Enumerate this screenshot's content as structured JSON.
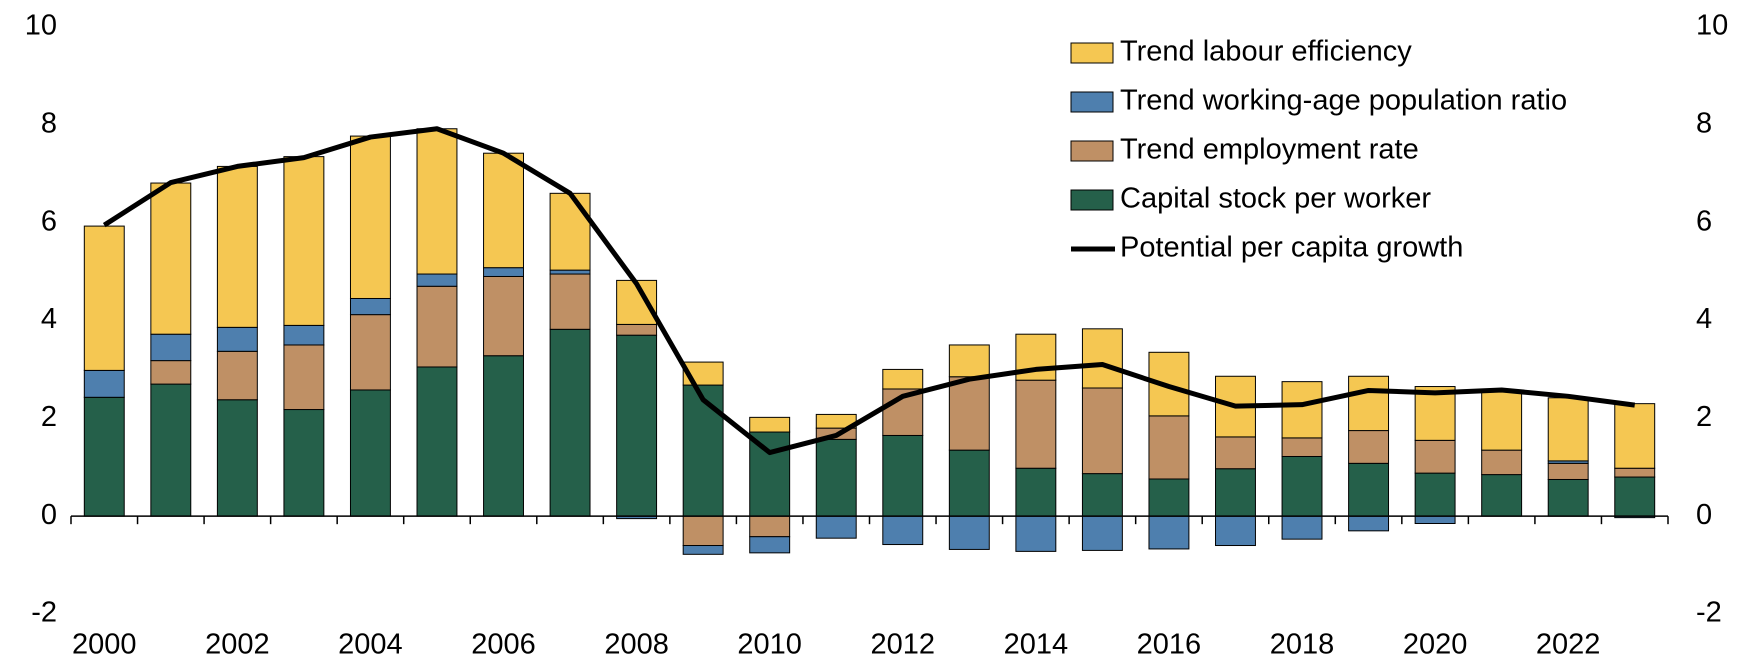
{
  "chart_data": {
    "type": "bar",
    "stacked": true,
    "categories": [
      "2000",
      null,
      "2002",
      null,
      "2004",
      null,
      "2006",
      null,
      "2008",
      null,
      "2010",
      null,
      "2012",
      null,
      "2014",
      null,
      "2016",
      null,
      "2018",
      null,
      "2020",
      null,
      "2022",
      null
    ],
    "series": [
      {
        "name": "Capital stock per worker",
        "color": "#25604a",
        "values": [
          2.43,
          2.7,
          2.38,
          2.18,
          2.58,
          3.05,
          3.28,
          3.82,
          3.7,
          2.68,
          1.72,
          1.57,
          1.65,
          1.35,
          0.98,
          0.87,
          0.76,
          0.97,
          1.22,
          1.08,
          0.88,
          0.85,
          0.75,
          0.8
        ]
      },
      {
        "name": "Trend employment rate",
        "color": "#bf9065",
        "values": [
          0,
          0.48,
          0.99,
          1.32,
          1.54,
          1.65,
          1.62,
          1.13,
          0.22,
          -0.6,
          -0.42,
          0.23,
          0.95,
          1.5,
          1.8,
          1.75,
          1.29,
          0.65,
          0.38,
          0.67,
          0.67,
          0.5,
          0.33,
          0.18
        ]
      },
      {
        "name": "Trend working-age population ratio",
        "color": "#4e7fae",
        "values": [
          0.55,
          0.54,
          0.49,
          0.4,
          0.33,
          0.25,
          0.18,
          0.08,
          -0.05,
          -0.18,
          -0.33,
          -0.45,
          -0.58,
          -0.68,
          -0.72,
          -0.7,
          -0.67,
          -0.6,
          -0.47,
          -0.3,
          -0.15,
          0.0,
          0.05,
          -0.03
        ]
      },
      {
        "name": "Trend labour efficiency",
        "color": "#f5c752",
        "values": [
          2.95,
          3.09,
          3.29,
          3.45,
          3.32,
          2.97,
          2.34,
          1.57,
          0.9,
          0.47,
          0.3,
          0.28,
          0.4,
          0.65,
          0.94,
          1.21,
          1.3,
          1.24,
          1.15,
          1.11,
          1.1,
          1.22,
          1.29,
          1.32
        ]
      },
      {
        "name": "Potential per capita growth",
        "type": "line",
        "color": "#000000",
        "values": [
          5.95,
          6.82,
          7.15,
          7.33,
          7.75,
          7.92,
          7.42,
          6.6,
          4.75,
          2.38,
          1.3,
          1.65,
          2.45,
          2.8,
          3.0,
          3.1,
          2.65,
          2.25,
          2.28,
          2.57,
          2.52,
          2.58,
          2.45,
          2.27
        ]
      }
    ],
    "ylim": [
      -2,
      10
    ],
    "yticks": [
      -2,
      0,
      2,
      4,
      6,
      8,
      10
    ],
    "y2lim": [
      -2,
      10
    ],
    "y2ticks": [
      -2,
      0,
      2,
      4,
      6,
      8,
      10
    ],
    "legend": "top-right"
  }
}
